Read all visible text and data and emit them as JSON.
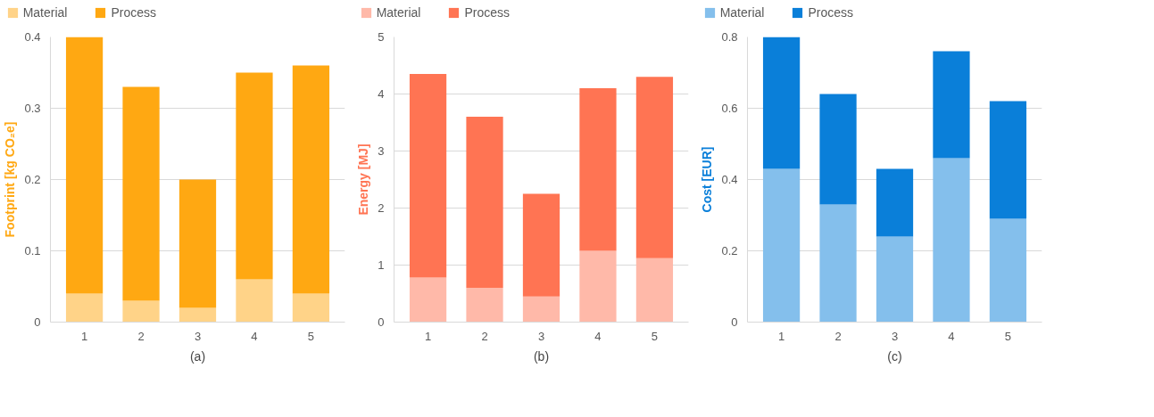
{
  "chart_data": [
    {
      "type": "bar",
      "stacked": true,
      "categories": [
        "1",
        "2",
        "3",
        "4",
        "5"
      ],
      "ylabel": "Footprint [kg CO₂e]",
      "ylim": [
        0,
        0.4
      ],
      "yticks": [
        0,
        0.1,
        0.2,
        0.3,
        0.4
      ],
      "grid": "y",
      "legend": "top",
      "annotations": [
        "(a)"
      ],
      "series": [
        {
          "name": "Material",
          "color": "#ffd388",
          "values": [
            0.04,
            0.03,
            0.02,
            0.06,
            0.04
          ]
        },
        {
          "name": "Process",
          "color": "#ffa812",
          "values": [
            0.36,
            0.3,
            0.18,
            0.29,
            0.32
          ]
        }
      ]
    },
    {
      "type": "bar",
      "stacked": true,
      "categories": [
        "1",
        "2",
        "3",
        "4",
        "5"
      ],
      "ylabel": "Energy [MJ]",
      "ylim": [
        0,
        5
      ],
      "yticks": [
        0,
        1,
        2,
        3,
        4,
        5
      ],
      "grid": "y",
      "legend": "top",
      "annotations": [
        "(b)"
      ],
      "series": [
        {
          "name": "Material",
          "color": "#ffb9a9",
          "values": [
            0.78,
            0.6,
            0.45,
            1.25,
            1.12
          ]
        },
        {
          "name": "Process",
          "color": "#ff7453",
          "values": [
            3.57,
            3.0,
            1.8,
            2.85,
            3.18
          ]
        }
      ]
    },
    {
      "type": "bar",
      "stacked": true,
      "categories": [
        "1",
        "2",
        "3",
        "4",
        "5"
      ],
      "ylabel": "Cost [EUR]",
      "ylim": [
        0,
        0.8
      ],
      "yticks": [
        0,
        0.2,
        0.4,
        0.6,
        0.8
      ],
      "grid": "y",
      "legend": "top",
      "annotations": [
        "(c)"
      ],
      "series": [
        {
          "name": "Material",
          "color": "#84bfec",
          "values": [
            0.43,
            0.33,
            0.24,
            0.46,
            0.29
          ]
        },
        {
          "name": "Process",
          "color": "#0a7fd9",
          "values": [
            0.37,
            0.31,
            0.19,
            0.3,
            0.33
          ]
        }
      ]
    }
  ]
}
